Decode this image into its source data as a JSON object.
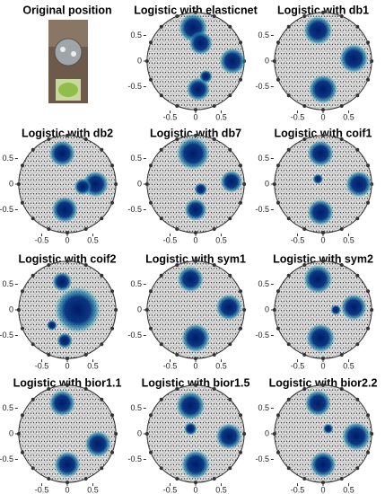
{
  "photo": {
    "title": "Original position"
  },
  "axes": {
    "xlim": [
      -1,
      1
    ],
    "ylim": [
      -1,
      1
    ],
    "xticks": [
      -0.5,
      0,
      0.5
    ],
    "yticks": [
      0.5,
      0,
      -0.5
    ]
  },
  "panels": [
    {
      "type": "mesh",
      "title": "Logistic with elasticnet",
      "regions": [
        [
          -0.05,
          0.65,
          0.22
        ],
        [
          0.1,
          0.35,
          0.18
        ],
        [
          0.72,
          0,
          0.2
        ],
        [
          0.05,
          -0.55,
          0.18
        ],
        [
          0.2,
          -0.3,
          0.1
        ]
      ]
    },
    {
      "type": "mesh",
      "title": "Logistic with db1",
      "regions": [
        [
          -0.1,
          0.6,
          0.22
        ],
        [
          0.6,
          0.05,
          0.22
        ],
        [
          0,
          -0.55,
          0.22
        ]
      ]
    },
    {
      "type": "mesh",
      "title": "Logistic with db2",
      "regions": [
        [
          -0.1,
          0.6,
          0.2
        ],
        [
          0.55,
          0,
          0.2
        ],
        [
          0.3,
          -0.05,
          0.13
        ],
        [
          -0.05,
          -0.5,
          0.2
        ]
      ]
    },
    {
      "type": "mesh",
      "title": "Logistic with db7",
      "regions": [
        [
          -0.05,
          0.6,
          0.25
        ],
        [
          0.7,
          0.05,
          0.17
        ],
        [
          0,
          -0.5,
          0.17
        ],
        [
          0.1,
          -0.1,
          0.1
        ]
      ]
    },
    {
      "type": "mesh",
      "title": "Logistic with coif1",
      "regions": [
        [
          -0.05,
          0.6,
          0.2
        ],
        [
          0.7,
          0,
          0.2
        ],
        [
          -0.05,
          -0.55,
          0.2
        ],
        [
          -0.1,
          0.1,
          0.08
        ]
      ]
    },
    {
      "type": "mesh",
      "title": "Logistic with coif2",
      "regions": [
        [
          -0.1,
          0.55,
          0.15
        ],
        [
          0.2,
          0,
          0.35
        ],
        [
          -0.05,
          -0.6,
          0.12
        ],
        [
          -0.3,
          -0.3,
          0.08
        ]
      ]
    },
    {
      "type": "mesh",
      "title": "Logistic with sym1",
      "regions": [
        [
          -0.1,
          0.6,
          0.2
        ],
        [
          0.65,
          0.05,
          0.2
        ],
        [
          0,
          -0.55,
          0.22
        ]
      ]
    },
    {
      "type": "mesh",
      "title": "Logistic with sym2",
      "regions": [
        [
          -0.1,
          0.6,
          0.22
        ],
        [
          0.6,
          0.05,
          0.2
        ],
        [
          -0.05,
          -0.55,
          0.22
        ],
        [
          0.25,
          0,
          0.08
        ]
      ]
    },
    {
      "type": "mesh",
      "title": "Logistic with bior1.1",
      "regions": [
        [
          -0.1,
          0.6,
          0.2
        ],
        [
          0.6,
          -0.2,
          0.2
        ],
        [
          0,
          -0.6,
          0.2
        ]
      ]
    },
    {
      "type": "mesh",
      "title": "Logistic with bior1.5",
      "regions": [
        [
          -0.1,
          0.55,
          0.22
        ],
        [
          0.65,
          -0.05,
          0.2
        ],
        [
          0,
          -0.6,
          0.22
        ],
        [
          -0.1,
          0.1,
          0.1
        ]
      ]
    },
    {
      "type": "mesh",
      "title": "Logistic with bior2.2",
      "regions": [
        [
          -0.1,
          0.6,
          0.2
        ],
        [
          0.65,
          -0.05,
          0.22
        ],
        [
          0,
          -0.6,
          0.2
        ],
        [
          0.1,
          0.1,
          0.08
        ]
      ]
    }
  ]
}
